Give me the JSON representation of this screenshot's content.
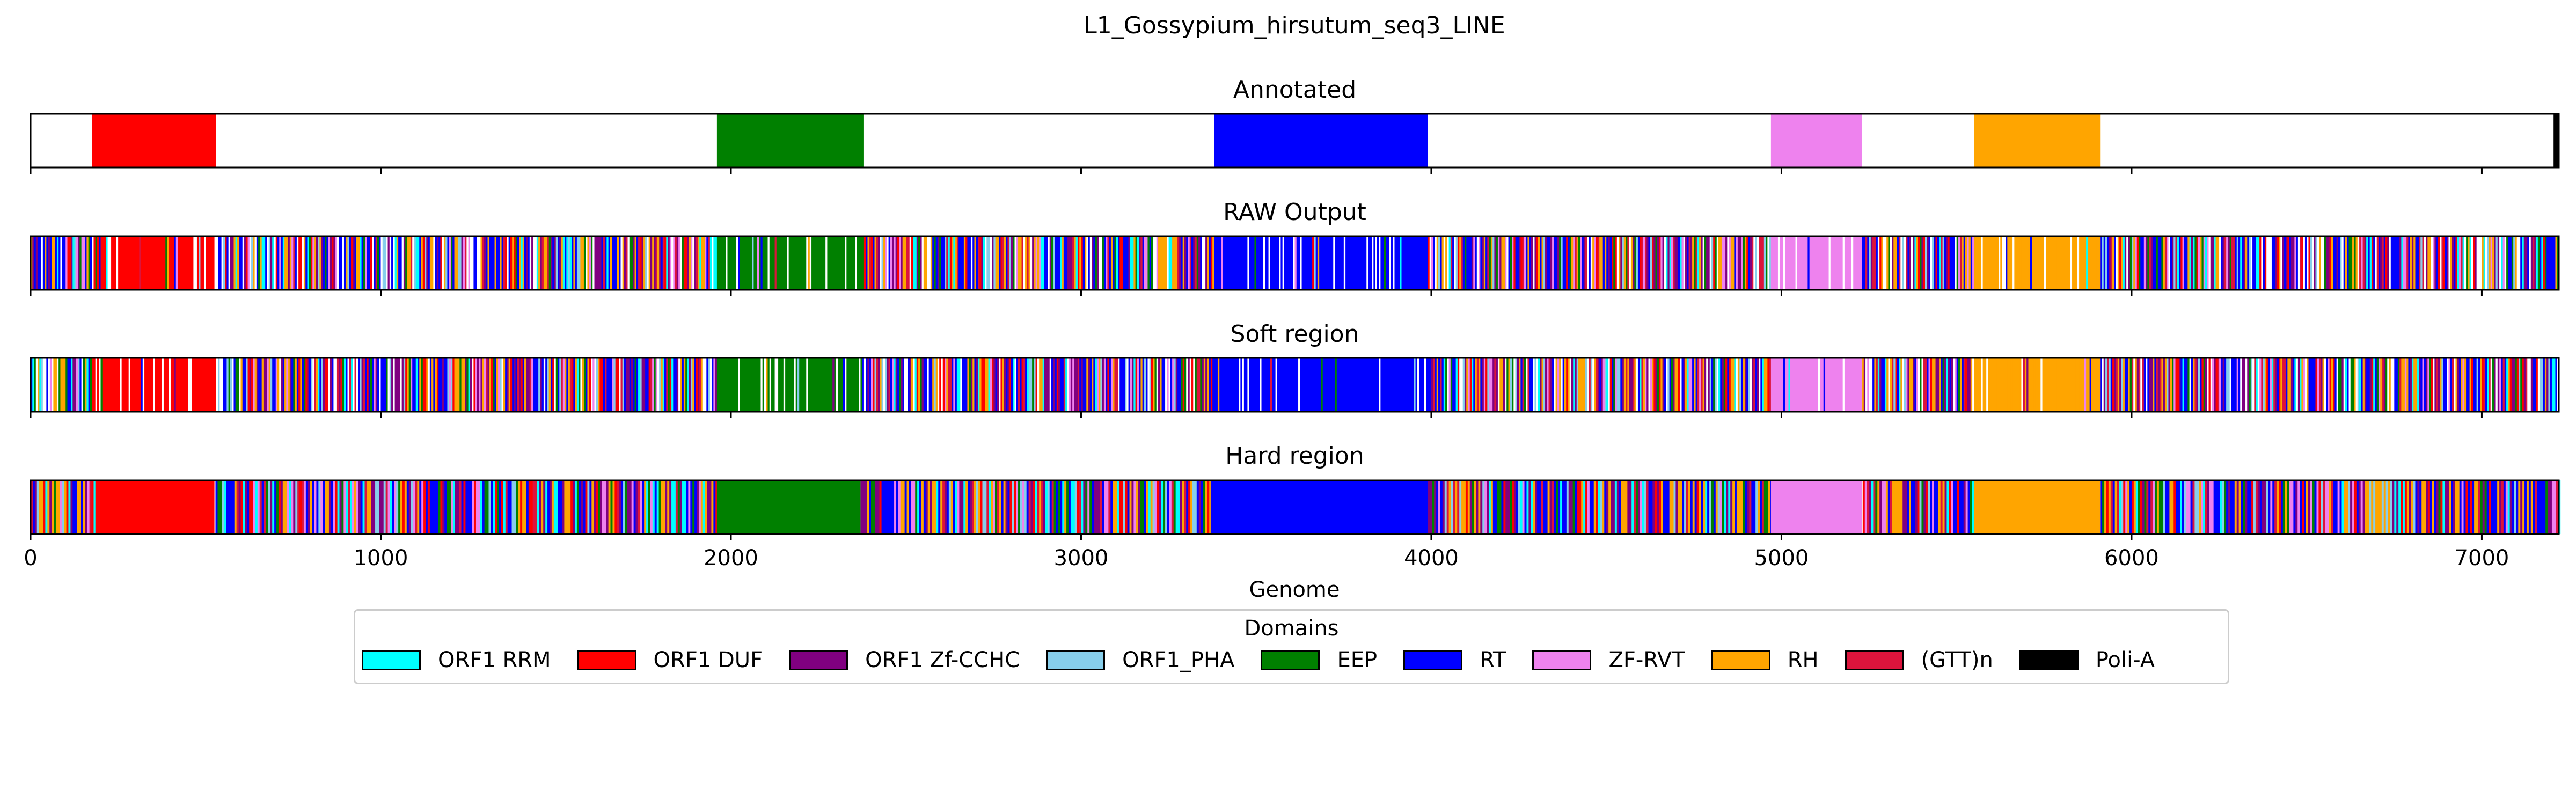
{
  "figure_title": "L1_Gossypium_hirsutum_seq3_LINE",
  "chart_data": {
    "type": "bar",
    "orientation": "horizontal-broken-bars",
    "title": "L1_Gossypium_hirsutum_seq3_LINE",
    "xlabel": "Genome",
    "xlim": [
      0,
      7220
    ],
    "xticks": [
      0,
      1000,
      2000,
      3000,
      4000,
      5000,
      6000,
      7000
    ],
    "xtick_labels": [
      "0",
      "1000",
      "2000",
      "3000",
      "4000",
      "5000",
      "6000",
      "7000"
    ],
    "panels": [
      {
        "title": "Annotated",
        "segments": [
          {
            "domain": "ORF1 DUF",
            "start": 175,
            "end": 530
          },
          {
            "domain": "EEP",
            "start": 1960,
            "end": 2380
          },
          {
            "domain": "RT",
            "start": 3380,
            "end": 3990
          },
          {
            "domain": "ZF-RVT",
            "start": 4970,
            "end": 5230
          },
          {
            "domain": "RH",
            "start": 5550,
            "end": 5910
          },
          {
            "domain": "Poli-A",
            "start": 7205,
            "end": 7220
          }
        ]
      },
      {
        "title": "RAW Output",
        "regions": [
          {
            "domain": "ORF1 DUF",
            "start": 175,
            "end": 530
          },
          {
            "domain": "EEP",
            "start": 1960,
            "end": 2380
          },
          {
            "domain": "RT",
            "start": 3380,
            "end": 3990
          },
          {
            "domain": "ZF-RVT",
            "start": 4970,
            "end": 5230
          },
          {
            "domain": "RH",
            "start": 5550,
            "end": 5910
          }
        ]
      },
      {
        "title": "Soft region",
        "regions": [
          {
            "domain": "ORF1 DUF",
            "start": 175,
            "end": 530
          },
          {
            "domain": "EEP",
            "start": 1960,
            "end": 2380
          },
          {
            "domain": "RT",
            "start": 3380,
            "end": 3990
          },
          {
            "domain": "ZF-RVT",
            "start": 4970,
            "end": 5230
          },
          {
            "domain": "RH",
            "start": 5550,
            "end": 5910
          }
        ]
      },
      {
        "title": "Hard region",
        "segments": [
          {
            "domain": "ORF1 DUF",
            "start": 185,
            "end": 525
          },
          {
            "domain": "EEP",
            "start": 1960,
            "end": 2370
          },
          {
            "domain": "RT",
            "start": 3370,
            "end": 3990
          },
          {
            "domain": "ZF-RVT",
            "start": 4970,
            "end": 5230
          },
          {
            "domain": "RH",
            "start": 5550,
            "end": 5910
          }
        ]
      }
    ],
    "legend": {
      "title": "Domains",
      "placement": "bottom-center",
      "entries": [
        {
          "name": "ORF1 RRM",
          "color": "#00ffff"
        },
        {
          "name": "ORF1 DUF",
          "color": "#ff0000"
        },
        {
          "name": "ORF1 Zf-CCHC",
          "color": "#800080"
        },
        {
          "name": "ORF1_PHA",
          "color": "#87ceeb"
        },
        {
          "name": "EEP",
          "color": "#008000"
        },
        {
          "name": "RT",
          "color": "#0000ff"
        },
        {
          "name": "ZF-RVT",
          "color": "#ee82ee"
        },
        {
          "name": "RH",
          "color": "#ffa500"
        },
        {
          "name": "(GTT)n",
          "color": "#dc143c"
        },
        {
          "name": "Poli-A",
          "color": "#000000"
        }
      ]
    }
  }
}
